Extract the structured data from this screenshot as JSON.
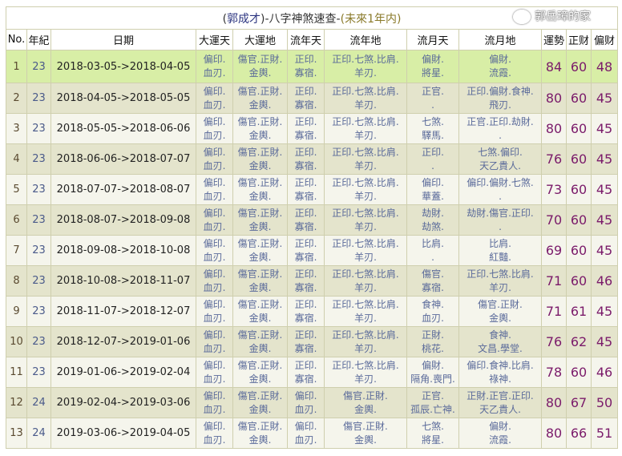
{
  "title": {
    "open": "(",
    "name": "郭成才",
    "close": ")",
    "mid": "-八字神煞速查-",
    "range": "(未來1年内)"
  },
  "headers": [
    "No.",
    "年紀",
    "日期",
    "大運天",
    "大運地",
    "流年天",
    "流年地",
    "流月天",
    "流月地",
    "運勢",
    "正财",
    "偏财"
  ],
  "rows": [
    {
      "no": "1",
      "age": "23",
      "date": "2018-03-05->2018-04-05",
      "dyt": [
        "偏印.",
        "血刃."
      ],
      "dyd": [
        "傷官.正財.",
        "金輿."
      ],
      "lnt": [
        "正印.",
        "寡宿."
      ],
      "lnd": [
        "正印.七煞.比肩.",
        "羊刃."
      ],
      "lyt": [
        "偏財.",
        "將星."
      ],
      "lyd": [
        "偏財.",
        "流霞."
      ],
      "ys": "84",
      "zc": "60",
      "pc": "48"
    },
    {
      "no": "2",
      "age": "23",
      "date": "2018-04-05->2018-05-05",
      "dyt": [
        "偏印.",
        "血刃."
      ],
      "dyd": [
        "傷官.正財.",
        "金輿."
      ],
      "lnt": [
        "正印.",
        "寡宿."
      ],
      "lnd": [
        "正印.七煞.比肩.",
        "羊刃."
      ],
      "lyt": [
        "正官.",
        "."
      ],
      "lyd": [
        "正印.偏財.食神.",
        "飛刃."
      ],
      "ys": "80",
      "zc": "60",
      "pc": "45"
    },
    {
      "no": "3",
      "age": "23",
      "date": "2018-05-05->2018-06-06",
      "dyt": [
        "偏印.",
        "血刃."
      ],
      "dyd": [
        "傷官.正財.",
        "金輿."
      ],
      "lnt": [
        "正印.",
        "寡宿."
      ],
      "lnd": [
        "正印.七煞.比肩.",
        "羊刃."
      ],
      "lyt": [
        "七煞.",
        "驛馬."
      ],
      "lyd": [
        "正官.正印.劫財.",
        "."
      ],
      "ys": "80",
      "zc": "60",
      "pc": "45"
    },
    {
      "no": "4",
      "age": "23",
      "date": "2018-06-06->2018-07-07",
      "dyt": [
        "偏印.",
        "血刃."
      ],
      "dyd": [
        "傷官.正財.",
        "金輿."
      ],
      "lnt": [
        "正印.",
        "寡宿."
      ],
      "lnd": [
        "正印.七煞.比肩.",
        "羊刃."
      ],
      "lyt": [
        "正印.",
        "."
      ],
      "lyd": [
        "七煞.偏印.",
        "天乙貴人."
      ],
      "ys": "76",
      "zc": "60",
      "pc": "45"
    },
    {
      "no": "5",
      "age": "23",
      "date": "2018-07-07->2018-08-07",
      "dyt": [
        "偏印.",
        "血刃."
      ],
      "dyd": [
        "傷官.正財.",
        "金輿."
      ],
      "lnt": [
        "正印.",
        "寡宿."
      ],
      "lnd": [
        "正印.七煞.比肩.",
        "羊刃."
      ],
      "lyt": [
        "偏印.",
        "華蓋."
      ],
      "lyd": [
        "偏印.偏財.七煞.",
        "."
      ],
      "ys": "73",
      "zc": "60",
      "pc": "45"
    },
    {
      "no": "6",
      "age": "23",
      "date": "2018-08-07->2018-09-08",
      "dyt": [
        "偏印.",
        "血刃."
      ],
      "dyd": [
        "傷官.正財.",
        "金輿."
      ],
      "lnt": [
        "正印.",
        "寡宿."
      ],
      "lnd": [
        "正印.七煞.比肩.",
        "羊刃."
      ],
      "lyt": [
        "劫財.",
        "劫煞."
      ],
      "lyd": [
        "劫財.傷官.正印.",
        "."
      ],
      "ys": "70",
      "zc": "60",
      "pc": "45"
    },
    {
      "no": "7",
      "age": "23",
      "date": "2018-09-08->2018-10-08",
      "dyt": [
        "偏印.",
        "血刃."
      ],
      "dyd": [
        "傷官.正財.",
        "金輿."
      ],
      "lnt": [
        "正印.",
        "寡宿."
      ],
      "lnd": [
        "正印.七煞.比肩.",
        "羊刃."
      ],
      "lyt": [
        "比肩.",
        "."
      ],
      "lyd": [
        "比肩.",
        "紅豔."
      ],
      "ys": "69",
      "zc": "60",
      "pc": "45"
    },
    {
      "no": "8",
      "age": "23",
      "date": "2018-10-08->2018-11-07",
      "dyt": [
        "偏印.",
        "血刃."
      ],
      "dyd": [
        "傷官.正財.",
        "金輿."
      ],
      "lnt": [
        "正印.",
        "寡宿."
      ],
      "lnd": [
        "正印.七煞.比肩.",
        "羊刃."
      ],
      "lyt": [
        "傷官.",
        "寡宿."
      ],
      "lyd": [
        "正印.七煞.比肩.",
        "羊刃."
      ],
      "ys": "71",
      "zc": "60",
      "pc": "46"
    },
    {
      "no": "9",
      "age": "23",
      "date": "2018-11-07->2018-12-07",
      "dyt": [
        "偏印.",
        "血刃."
      ],
      "dyd": [
        "傷官.正財.",
        "金輿."
      ],
      "lnt": [
        "正印.",
        "寡宿."
      ],
      "lnd": [
        "正印.七煞.比肩.",
        "羊刃."
      ],
      "lyt": [
        "食神.",
        "血刃."
      ],
      "lyd": [
        "傷官.正財.",
        "金輿."
      ],
      "ys": "71",
      "zc": "61",
      "pc": "45"
    },
    {
      "no": "10",
      "age": "23",
      "date": "2018-12-07->2019-01-06",
      "dyt": [
        "偏印.",
        "血刃."
      ],
      "dyd": [
        "傷官.正財.",
        "金輿."
      ],
      "lnt": [
        "正印.",
        "寡宿."
      ],
      "lnd": [
        "正印.七煞.比肩.",
        "羊刃."
      ],
      "lyt": [
        "正財.",
        "桃花."
      ],
      "lyd": [
        "食神.",
        "文昌.學堂."
      ],
      "ys": "76",
      "zc": "62",
      "pc": "45"
    },
    {
      "no": "11",
      "age": "23",
      "date": "2019-01-06->2019-02-04",
      "dyt": [
        "偏印.",
        "血刃."
      ],
      "dyd": [
        "傷官.正財.",
        "金輿."
      ],
      "lnt": [
        "正印.",
        "寡宿."
      ],
      "lnd": [
        "正印.七煞.比肩.",
        "羊刃."
      ],
      "lyt": [
        "偏財.",
        "隔角.喪門."
      ],
      "lyd": [
        "偏印.食神.比肩.",
        "祿神."
      ],
      "ys": "78",
      "zc": "60",
      "pc": "46"
    },
    {
      "no": "12",
      "age": "24",
      "date": "2019-02-04->2019-03-06",
      "dyt": [
        "偏印.",
        "血刃."
      ],
      "dyd": [
        "傷官.正財.",
        "金輿."
      ],
      "lnt": [
        "偏印.",
        "血刃."
      ],
      "lnd": [
        "傷官.正財.",
        "金輿."
      ],
      "lyt": [
        "正官.",
        "孤辰.亡神."
      ],
      "lyd": [
        "正財.正官.正印.",
        "天乙貴人."
      ],
      "ys": "80",
      "zc": "67",
      "pc": "50"
    },
    {
      "no": "13",
      "age": "24",
      "date": "2019-03-06->2019-04-05",
      "dyt": [
        "偏印.",
        "血刃."
      ],
      "dyd": [
        "傷官.正財.",
        "金輿."
      ],
      "lnt": [
        "偏印.",
        "血刃."
      ],
      "lnd": [
        "傷官.正財.",
        "金輿."
      ],
      "lyt": [
        "七煞.",
        "將星."
      ],
      "lyd": [
        "偏財.",
        "流霞."
      ],
      "ys": "80",
      "zc": "66",
      "pc": "51"
    }
  ],
  "watermark": "郭岳璋的家",
  "colors": {
    "row_highlight": "#d8eea6",
    "row_even": "#e4e4cc",
    "row_odd": "#f5f5ec",
    "number": "#7a1a6a",
    "text": "#5a6a9a"
  }
}
